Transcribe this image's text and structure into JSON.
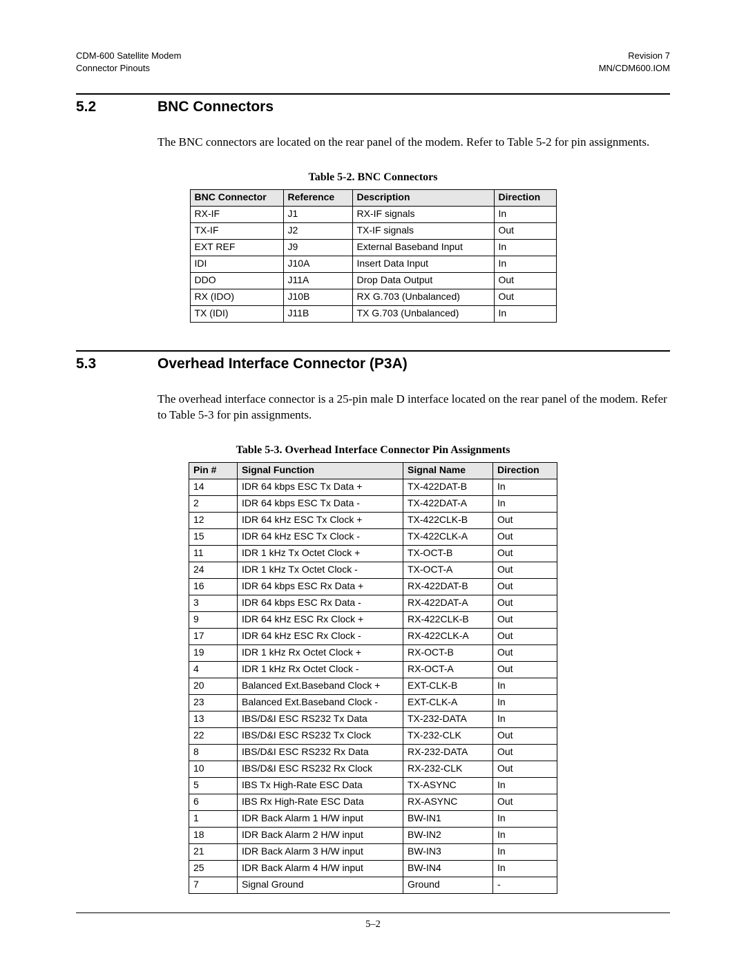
{
  "header": {
    "left_line1": "CDM-600 Satellite Modem",
    "left_line2": "Connector Pinouts",
    "right_line1": "Revision 7",
    "right_line2": "MN/CDM600.IOM"
  },
  "section52": {
    "num": "5.2",
    "title": "BNC Connectors",
    "paragraph": "The BNC connectors are located on the rear panel of the modem. Refer to Table 5-2 for pin assignments."
  },
  "table52": {
    "caption": "Table 5-2.  BNC Connectors",
    "columns": [
      "BNC Connector",
      "Reference",
      "Description",
      "Direction"
    ],
    "rows": [
      [
        "RX-IF",
        "J1",
        "RX-IF signals",
        "In"
      ],
      [
        "TX-IF",
        "J2",
        "TX-IF signals",
        "Out"
      ],
      [
        "EXT REF",
        "J9",
        "External Baseband Input",
        "In"
      ],
      [
        "IDI",
        "J10A",
        "Insert Data Input",
        "In"
      ],
      [
        "DDO",
        "J11A",
        "Drop Data Output",
        "Out"
      ],
      [
        "RX (IDO)",
        "J10B",
        "RX G.703 (Unbalanced)",
        "Out"
      ],
      [
        "TX (IDI)",
        "J11B",
        "TX G.703 (Unbalanced)",
        "In"
      ]
    ]
  },
  "section53": {
    "num": "5.3",
    "title": "Overhead Interface Connector (P3A)",
    "paragraph": "The overhead interface connector is a 25-pin male D interface located on the rear panel of the modem. Refer to Table 5-3 for pin assignments."
  },
  "table53": {
    "caption": "Table 5-3.  Overhead Interface Connector Pin Assignments",
    "columns": [
      "Pin #",
      "Signal Function",
      "Signal Name",
      "Direction"
    ],
    "rows": [
      [
        "14",
        "IDR 64 kbps ESC Tx Data +",
        "TX-422DAT-B",
        "In"
      ],
      [
        "2",
        "IDR 64 kbps ESC Tx Data -",
        "TX-422DAT-A",
        "In"
      ],
      [
        "12",
        "IDR 64 kHz ESC Tx Clock +",
        "TX-422CLK-B",
        "Out"
      ],
      [
        "15",
        "IDR 64 kHz ESC Tx Clock -",
        "TX-422CLK-A",
        "Out"
      ],
      [
        "11",
        "IDR 1 kHz Tx Octet Clock +",
        "TX-OCT-B",
        "Out"
      ],
      [
        "24",
        "IDR 1 kHz Tx Octet Clock -",
        "TX-OCT-A",
        "Out"
      ],
      [
        "16",
        "IDR 64 kbps ESC Rx Data +",
        "RX-422DAT-B",
        "Out"
      ],
      [
        "3",
        "IDR 64 kbps ESC Rx Data -",
        "RX-422DAT-A",
        "Out"
      ],
      [
        "9",
        "IDR 64 kHz ESC Rx Clock +",
        "RX-422CLK-B",
        "Out"
      ],
      [
        "17",
        "IDR 64 kHz ESC Rx Clock -",
        "RX-422CLK-A",
        "Out"
      ],
      [
        "19",
        "IDR 1 kHz Rx Octet Clock +",
        "RX-OCT-B",
        "Out"
      ],
      [
        "4",
        "IDR 1 kHz Rx Octet Clock -",
        "RX-OCT-A",
        "Out"
      ],
      [
        "20",
        "Balanced Ext.Baseband Clock +",
        "EXT-CLK-B",
        "In"
      ],
      [
        "23",
        "Balanced Ext.Baseband Clock -",
        "EXT-CLK-A",
        "In"
      ],
      [
        "13",
        "IBS/D&I ESC RS232 Tx Data",
        "TX-232-DATA",
        "In"
      ],
      [
        "22",
        "IBS/D&I ESC RS232 Tx Clock",
        "TX-232-CLK",
        "Out"
      ],
      [
        "8",
        "IBS/D&I ESC RS232 Rx Data",
        "RX-232-DATA",
        "Out"
      ],
      [
        "10",
        "IBS/D&I ESC RS232 Rx Clock",
        "RX-232-CLK",
        "Out"
      ],
      [
        "5",
        "IBS Tx High-Rate ESC Data",
        "TX-ASYNC",
        "In"
      ],
      [
        "6",
        "IBS Rx High-Rate ESC Data",
        "RX-ASYNC",
        "Out"
      ],
      [
        "1",
        "IDR Back Alarm 1 H/W input",
        "BW-IN1",
        "In"
      ],
      [
        "18",
        "IDR Back Alarm 2 H/W input",
        "BW-IN2",
        "In"
      ],
      [
        "21",
        "IDR Back Alarm 3 H/W input",
        "BW-IN3",
        "In"
      ],
      [
        "25",
        "IDR Back Alarm 4 H/W input",
        "BW-IN4",
        "In"
      ],
      [
        "7",
        "Signal Ground",
        "Ground",
        "-"
      ]
    ]
  },
  "footer": {
    "page_number": "5–2"
  }
}
